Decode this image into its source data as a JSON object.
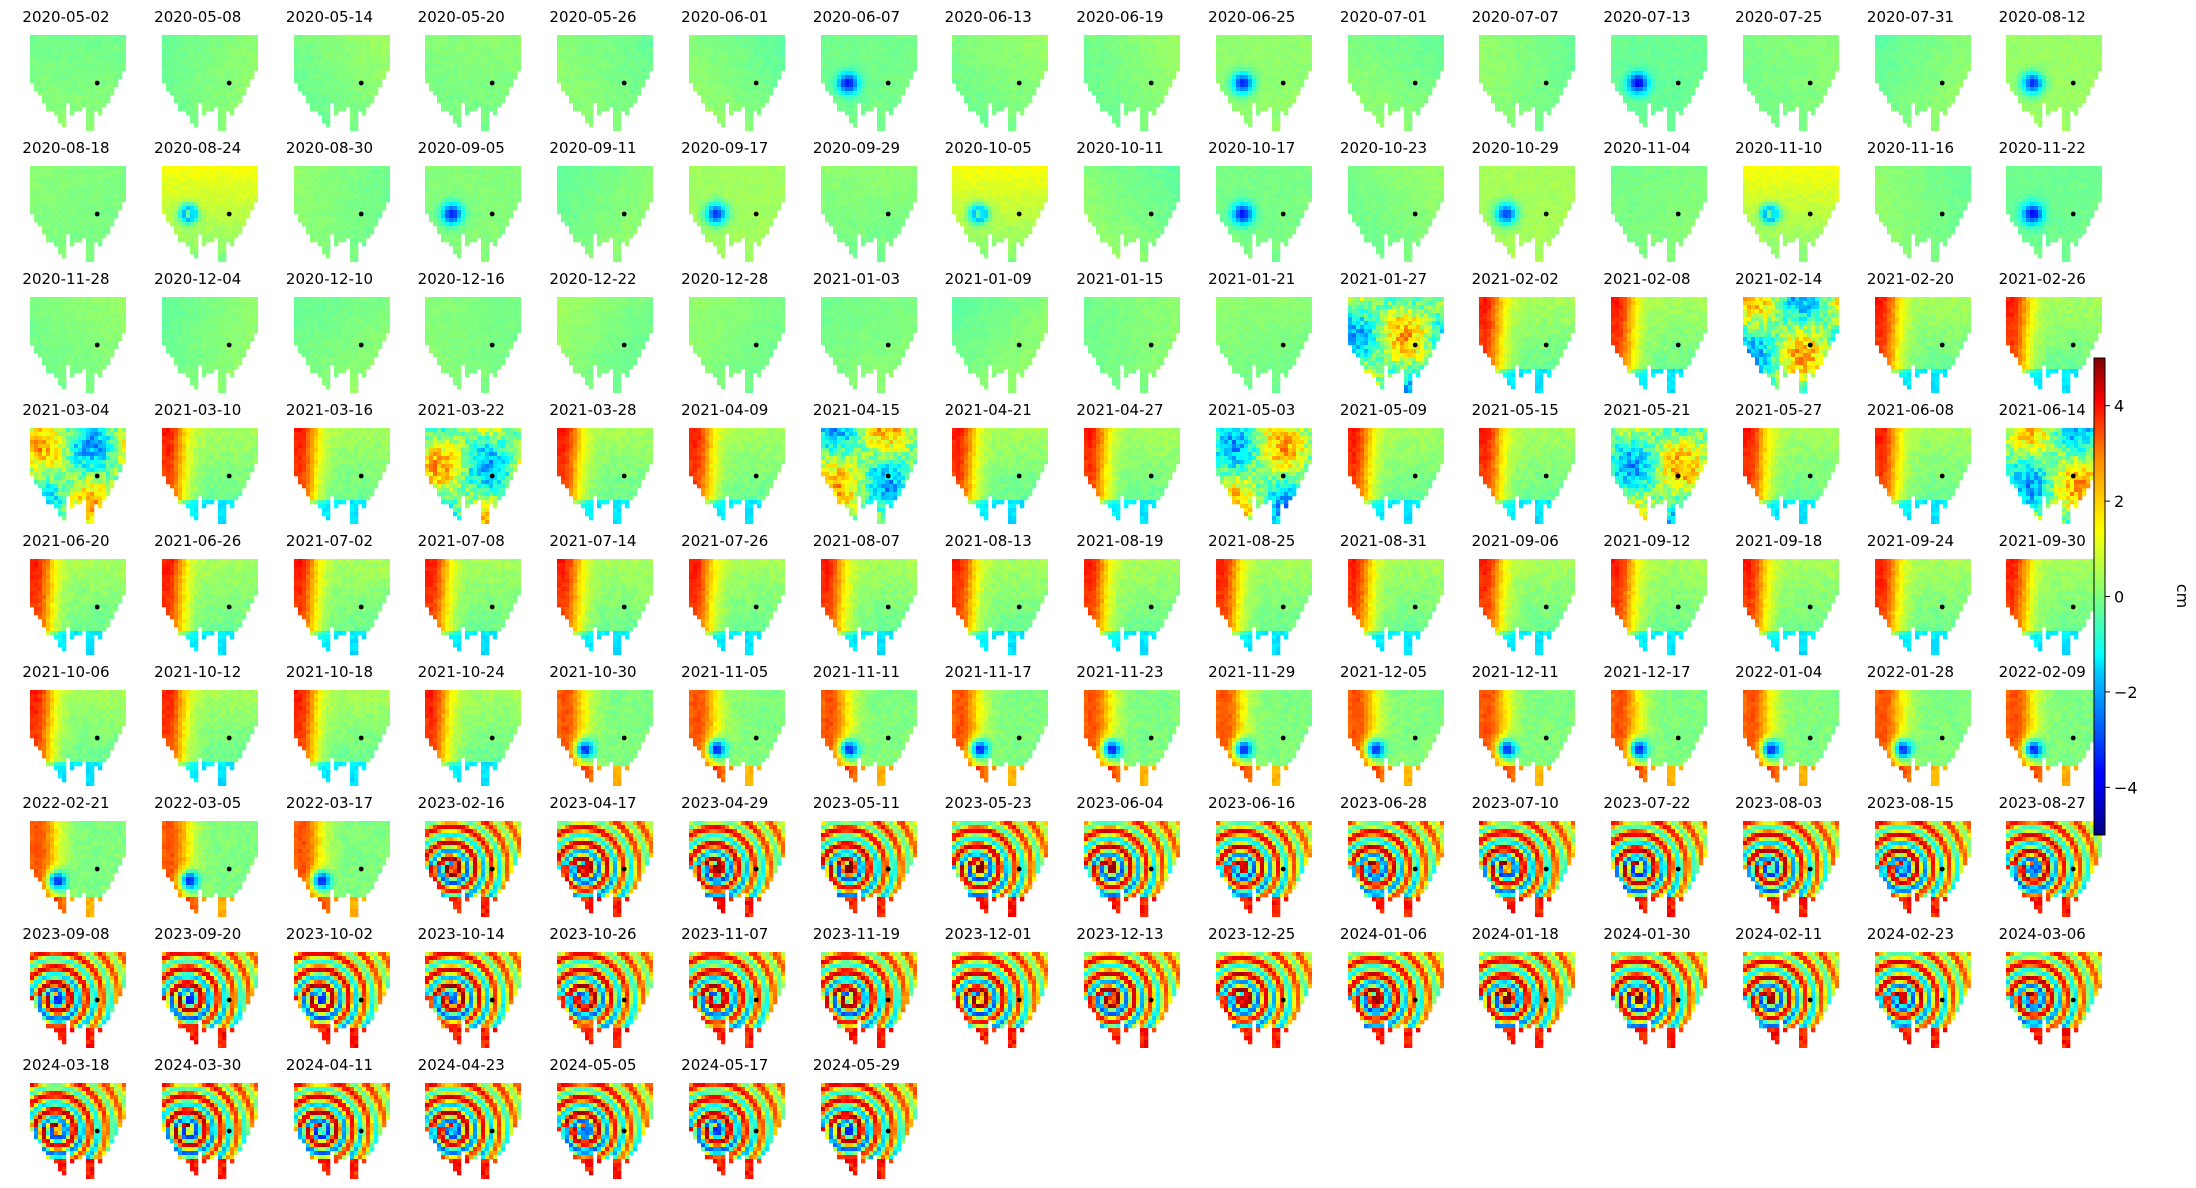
{
  "chart_data": {
    "type": "heatmap",
    "title": "",
    "panel_titles": [
      "2020-05-02",
      "2020-05-08",
      "2020-05-14",
      "2020-05-20",
      "2020-05-26",
      "2020-06-01",
      "2020-06-07",
      "2020-06-13",
      "2020-06-19",
      "2020-06-25",
      "2020-07-01",
      "2020-07-07",
      "2020-07-13",
      "2020-07-25",
      "2020-07-31",
      "2020-08-12",
      "2020-08-18",
      "2020-08-24",
      "2020-08-30",
      "2020-09-05",
      "2020-09-11",
      "2020-09-17",
      "2020-09-29",
      "2020-10-05",
      "2020-10-11",
      "2020-10-17",
      "2020-10-23",
      "2020-10-29",
      "2020-11-04",
      "2020-11-10",
      "2020-11-16",
      "2020-11-22",
      "2020-11-28",
      "2020-12-04",
      "2020-12-10",
      "2020-12-16",
      "2020-12-22",
      "2020-12-28",
      "2021-01-03",
      "2021-01-09",
      "2021-01-15",
      "2021-01-21",
      "2021-01-27",
      "2021-02-02",
      "2021-02-08",
      "2021-02-14",
      "2021-02-20",
      "2021-02-26",
      "2021-03-04",
      "2021-03-10",
      "2021-03-16",
      "2021-03-22",
      "2021-03-28",
      "2021-04-09",
      "2021-04-15",
      "2021-04-21",
      "2021-04-27",
      "2021-05-03",
      "2021-05-09",
      "2021-05-15",
      "2021-05-21",
      "2021-05-27",
      "2021-06-08",
      "2021-06-14",
      "2021-06-20",
      "2021-06-26",
      "2021-07-02",
      "2021-07-08",
      "2021-07-14",
      "2021-07-26",
      "2021-08-07",
      "2021-08-13",
      "2021-08-19",
      "2021-08-25",
      "2021-08-31",
      "2021-09-06",
      "2021-09-12",
      "2021-09-18",
      "2021-09-24",
      "2021-09-30",
      "2021-10-06",
      "2021-10-12",
      "2021-10-18",
      "2021-10-24",
      "2021-10-30",
      "2021-11-05",
      "2021-11-11",
      "2021-11-17",
      "2021-11-23",
      "2021-11-29",
      "2021-12-05",
      "2021-12-11",
      "2021-12-17",
      "2022-01-04",
      "2022-01-28",
      "2022-02-09",
      "2022-02-21",
      "2022-03-05",
      "2022-03-17",
      "2023-02-16",
      "2023-04-17",
      "2023-04-29",
      "2023-05-11",
      "2023-05-23",
      "2023-06-04",
      "2023-06-16",
      "2023-06-28",
      "2023-07-10",
      "2023-07-22",
      "2023-08-03",
      "2023-08-15",
      "2023-08-27",
      "2023-09-08",
      "2023-09-20",
      "2023-10-02",
      "2023-10-14",
      "2023-10-26",
      "2023-11-07",
      "2023-11-19",
      "2023-12-01",
      "2023-12-13",
      "2023-12-25",
      "2024-01-06",
      "2024-01-18",
      "2024-01-30",
      "2024-02-11",
      "2024-02-23",
      "2024-03-06",
      "2024-03-18",
      "2024-03-30",
      "2024-04-11",
      "2024-04-23",
      "2024-05-05",
      "2024-05-17",
      "2024-05-29"
    ],
    "colorbar": {
      "label": "cm",
      "range": [
        -5,
        5
      ],
      "ticks": [
        4,
        2,
        0,
        -2,
        -4
      ],
      "tick_labels": [
        "4",
        "2",
        "0",
        "−2",
        "−4"
      ],
      "colormap": "jet"
    }
  }
}
